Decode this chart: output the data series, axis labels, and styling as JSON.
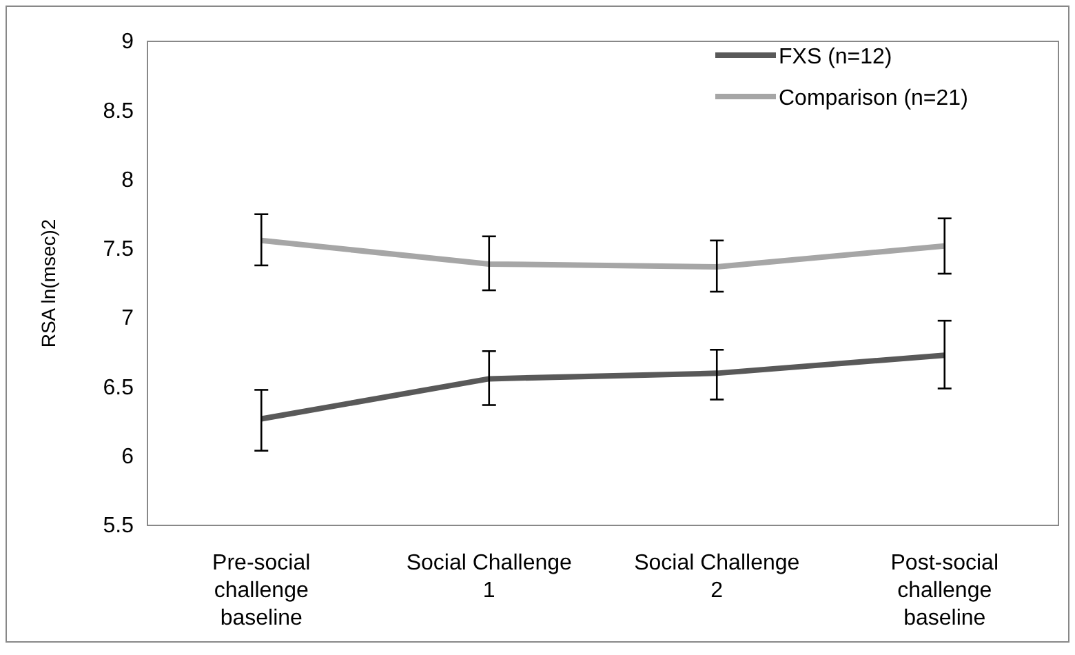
{
  "chart_data": {
    "type": "line",
    "ylabel": "RSA ln(msec)2",
    "categories": [
      "Pre-social challenge baseline",
      "Social Challenge 1",
      "Social Challenge 2",
      "Post-social challenge baseline"
    ],
    "series": [
      {
        "name": "FXS (n=12)",
        "color": "#595959",
        "values": [
          6.27,
          6.56,
          6.6,
          6.73
        ],
        "errors": [
          [
            6.04,
            6.48
          ],
          [
            6.37,
            6.76
          ],
          [
            6.41,
            6.77
          ],
          [
            6.49,
            6.98
          ]
        ]
      },
      {
        "name": "Comparison (n=21)",
        "color": "#a6a6a6",
        "values": [
          7.56,
          7.39,
          7.37,
          7.52
        ],
        "errors": [
          [
            7.38,
            7.75
          ],
          [
            7.2,
            7.59
          ],
          [
            7.19,
            7.56
          ],
          [
            7.32,
            7.72
          ]
        ]
      }
    ],
    "ylim": [
      5.5,
      9
    ],
    "yticks": [
      5.5,
      6,
      6.5,
      7,
      7.5,
      8,
      8.5,
      9
    ],
    "grid": false,
    "legend": "top right",
    "marker": "none",
    "line_style": "solid"
  }
}
